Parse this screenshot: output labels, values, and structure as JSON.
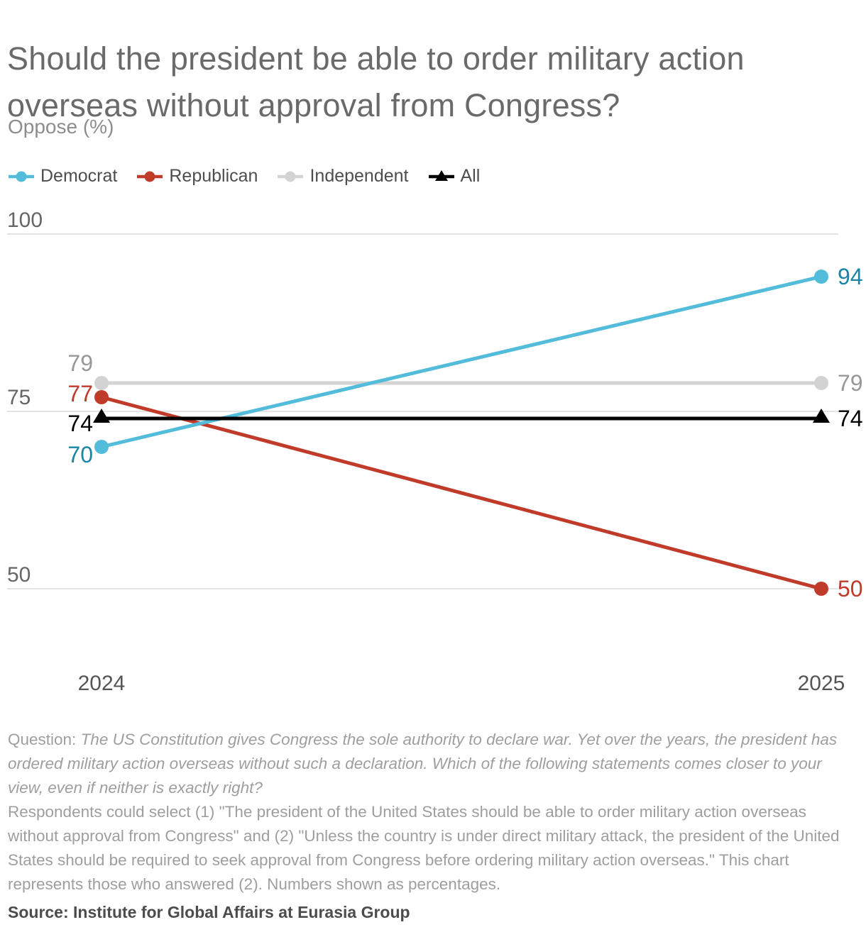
{
  "header": {
    "title": "Should the president be able to order military action overseas without approval from Congress?",
    "subtitle": "Oppose (%)"
  },
  "chart_data": {
    "type": "line",
    "x_tick_labels": [
      "2024",
      "2025"
    ],
    "y_ticks": [
      100,
      75,
      50
    ],
    "ylim": [
      50,
      100
    ],
    "grid": "horizontal",
    "legend_position": "top",
    "value_labels": "both-ends",
    "series": [
      {
        "name": "Democrat",
        "values": [
          70,
          94
        ],
        "color": "#53bcdb",
        "label_color": "#1b84a7",
        "marker": "circle"
      },
      {
        "name": "Republican",
        "values": [
          77,
          50
        ],
        "color": "#c13b2b",
        "label_color": "#c13b2b",
        "marker": "circle"
      },
      {
        "name": "Independent",
        "values": [
          79,
          79
        ],
        "color": "#d3d3d3",
        "label_color": "#989898",
        "marker": "circle"
      },
      {
        "name": "All",
        "values": [
          74,
          74
        ],
        "color": "#000000",
        "label_color": "#000000",
        "marker": "triangle"
      }
    ],
    "colors": {
      "gridline": "#e4e4e4",
      "tick_label": "#666666",
      "x_label": "#555555"
    }
  },
  "footnote": {
    "question_label": "Question: ",
    "question_text": "The US Constitution gives Congress the sole authority to declare war. Yet over the years, the president has ordered military action overseas without such a declaration. Which of the following statements comes closer to your view, even if neither is exactly right?",
    "respondents_text": "Respondents could select (1) \"The president of the United States should be able to order military action overseas without approval from Congress\" and (2) \"Unless the country is under direct military attack, the president of the United States should be required to seek approval from Congress before ordering military action overseas.\" This chart represents those who answered (2). Numbers shown as percentages."
  },
  "source": "Source: Institute for Global Affairs at Eurasia Group"
}
